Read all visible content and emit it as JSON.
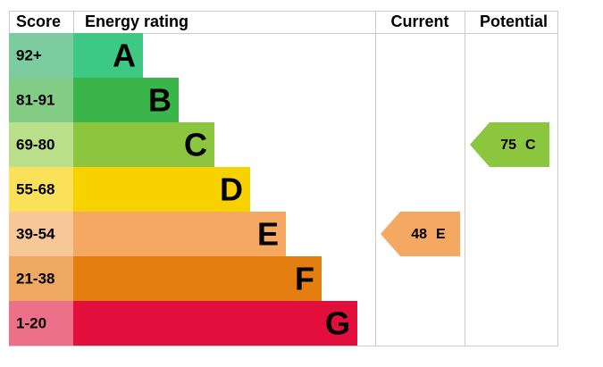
{
  "header": {
    "score": "Score",
    "rating": "Energy rating",
    "current": "Current",
    "potential": "Potential"
  },
  "bands": [
    {
      "score": "92+",
      "letter": "A",
      "color": "#3dc983",
      "light": "#7ccca0"
    },
    {
      "score": "81-91",
      "letter": "B",
      "color": "#3bb54a",
      "light": "#83cc85"
    },
    {
      "score": "69-80",
      "letter": "C",
      "color": "#8cc63e",
      "light": "#b9df8a"
    },
    {
      "score": "55-68",
      "letter": "D",
      "color": "#f7d100",
      "light": "#fbe15a"
    },
    {
      "score": "39-54",
      "letter": "E",
      "color": "#f4a862",
      "light": "#f8c797"
    },
    {
      "score": "21-38",
      "letter": "F",
      "color": "#e57e10",
      "light": "#efa862"
    },
    {
      "score": "1-20",
      "letter": "G",
      "color": "#e20e3c",
      "light": "#ec7088"
    }
  ],
  "current": {
    "score": 48,
    "band": "E"
  },
  "potential": {
    "score": 75,
    "band": "C"
  }
}
